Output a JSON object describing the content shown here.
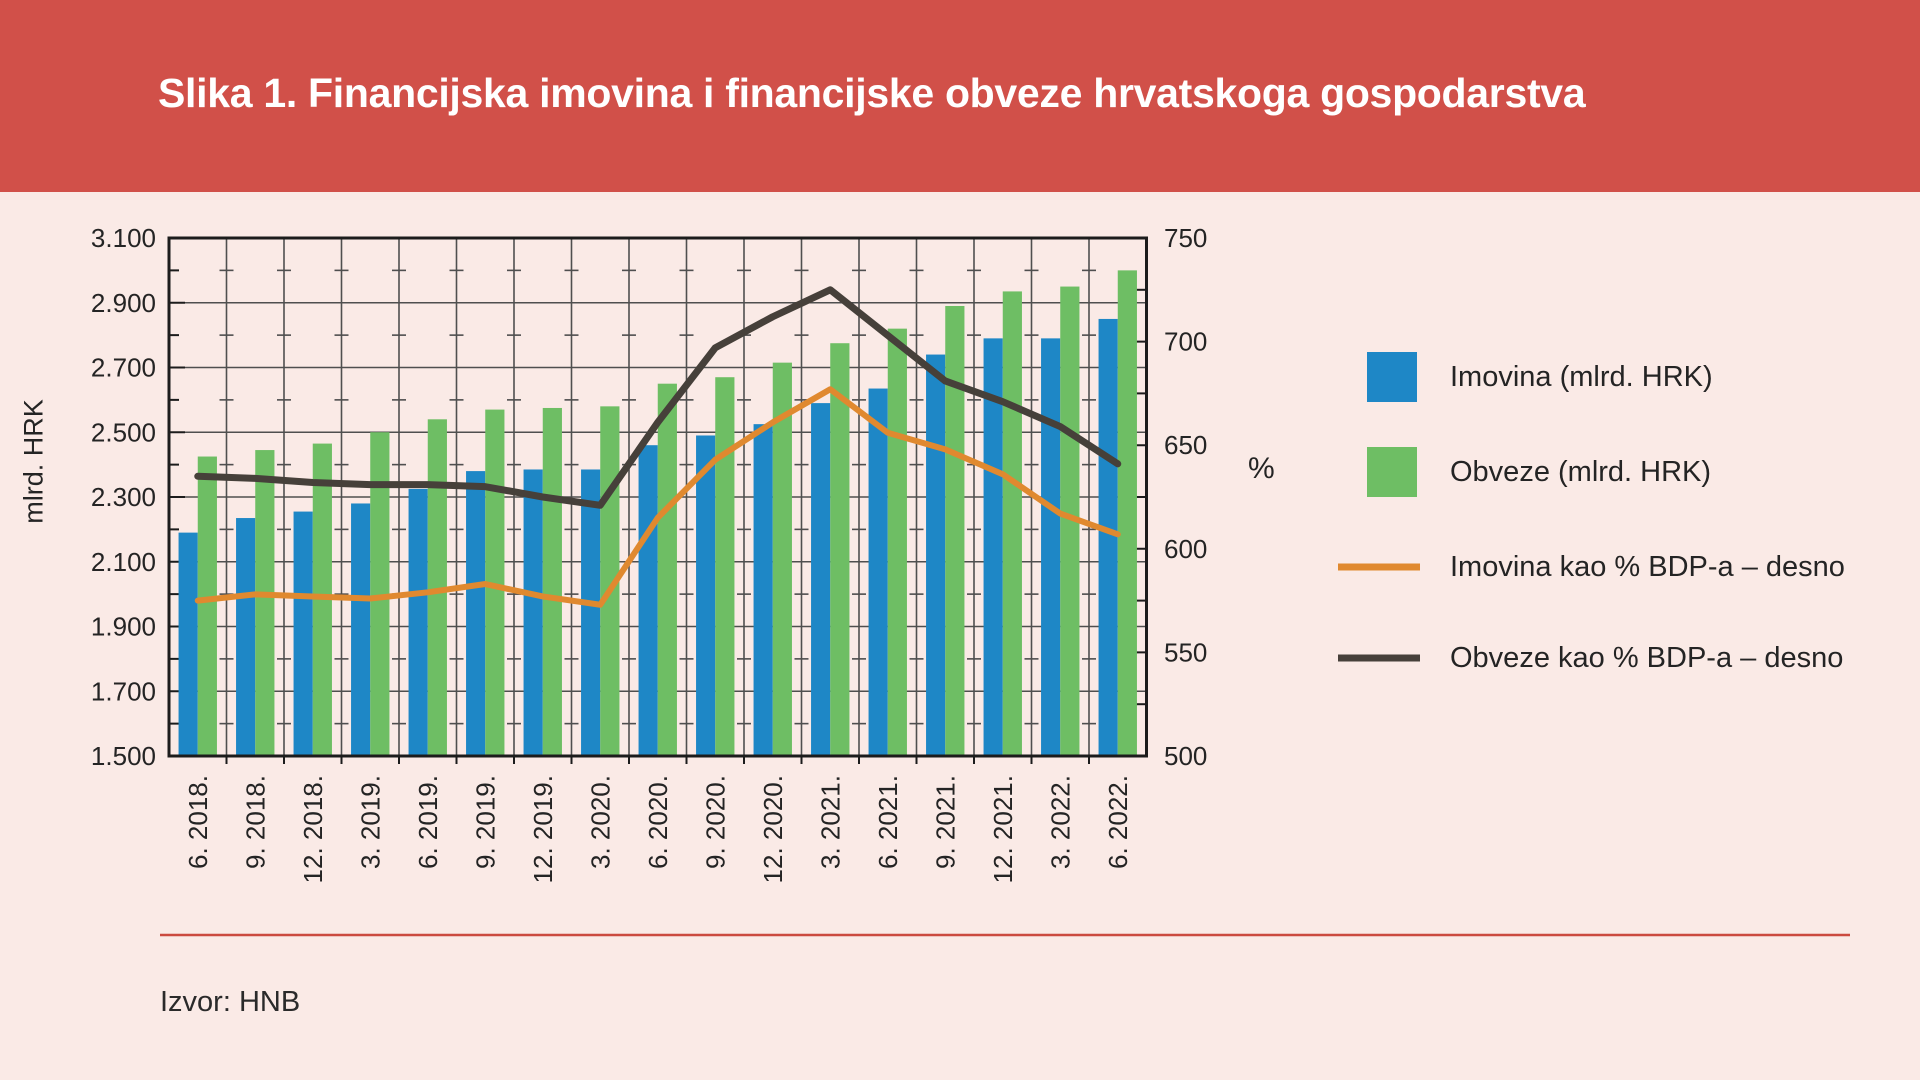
{
  "header": {
    "title": "Slika 1. Financijska imovina i financijske obveze hrvatskoga gospodarstva"
  },
  "source": "Izvor: HNB",
  "colors": {
    "banner": "#d15049",
    "background": "#faeae6",
    "title_text": "#ffffff",
    "text": "#242424",
    "grid": "#4f4f4f",
    "frame": "#1c1c1c",
    "separator": "#cb4a3f",
    "bar_imovina": "#1e87c6",
    "bar_obveze": "#6ebe64",
    "line_imovina_pct": "#e0892f",
    "line_obveze_pct": "#46403a"
  },
  "chart_data": {
    "type": "bar",
    "subtype": "grouped bars with two overlay lines on secondary axis",
    "grid": true,
    "legend_position": "right",
    "categories": [
      "6. 2018.",
      "9. 2018.",
      "12. 2018.",
      "3. 2019.",
      "6. 2019.",
      "9. 2019.",
      "12. 2019.",
      "3. 2020.",
      "6. 2020.",
      "9. 2020.",
      "12. 2020.",
      "3. 2021.",
      "6. 2021.",
      "9. 2021.",
      "12. 2021.",
      "3. 2022.",
      "6. 2022."
    ],
    "left_axis": {
      "label": "mlrd. HRK",
      "min": 1500,
      "max": 3100,
      "major_step": 200,
      "minor_step": 100,
      "tick_labels": [
        "3.100",
        "2.900",
        "2.700",
        "2.500",
        "2.300",
        "2.100",
        "1.900",
        "1.700",
        "1.500"
      ]
    },
    "right_axis": {
      "label": "%",
      "min": 500,
      "max": 750,
      "major_step": 50,
      "minor_step": 25,
      "tick_labels": [
        "750",
        "700",
        "650",
        "600",
        "550",
        "500"
      ]
    },
    "series": [
      {
        "id": "imovina",
        "name": "Imovina (mlrd. HRK)",
        "type": "bar",
        "axis": "left",
        "color": "#1e87c6",
        "values": [
          2190,
          2235,
          2255,
          2280,
          2325,
          2380,
          2385,
          2385,
          2460,
          2490,
          2525,
          2590,
          2635,
          2740,
          2790,
          2790,
          2850
        ]
      },
      {
        "id": "obveze",
        "name": "Obveze (mlrd. HRK)",
        "type": "bar",
        "axis": "left",
        "color": "#6ebe64",
        "values": [
          2425,
          2445,
          2465,
          2500,
          2540,
          2570,
          2575,
          2580,
          2650,
          2670,
          2715,
          2775,
          2820,
          2890,
          2935,
          2950,
          3000
        ]
      },
      {
        "id": "imovina_pct",
        "name": "Imovina kao % BDP-a – desno",
        "type": "line",
        "axis": "right",
        "color": "#e0892f",
        "values": [
          575,
          578,
          577,
          576,
          579,
          583,
          577,
          573,
          615,
          643,
          661,
          677,
          656,
          648,
          636,
          617,
          607
        ]
      },
      {
        "id": "obveze_pct",
        "name": "Obveze kao % BDP-a – desno",
        "type": "line",
        "axis": "right",
        "color": "#46403a",
        "values": [
          635,
          634,
          632,
          631,
          631,
          630,
          625,
          621,
          661,
          697,
          712,
          725,
          703,
          681,
          671,
          659,
          641
        ]
      }
    ]
  }
}
